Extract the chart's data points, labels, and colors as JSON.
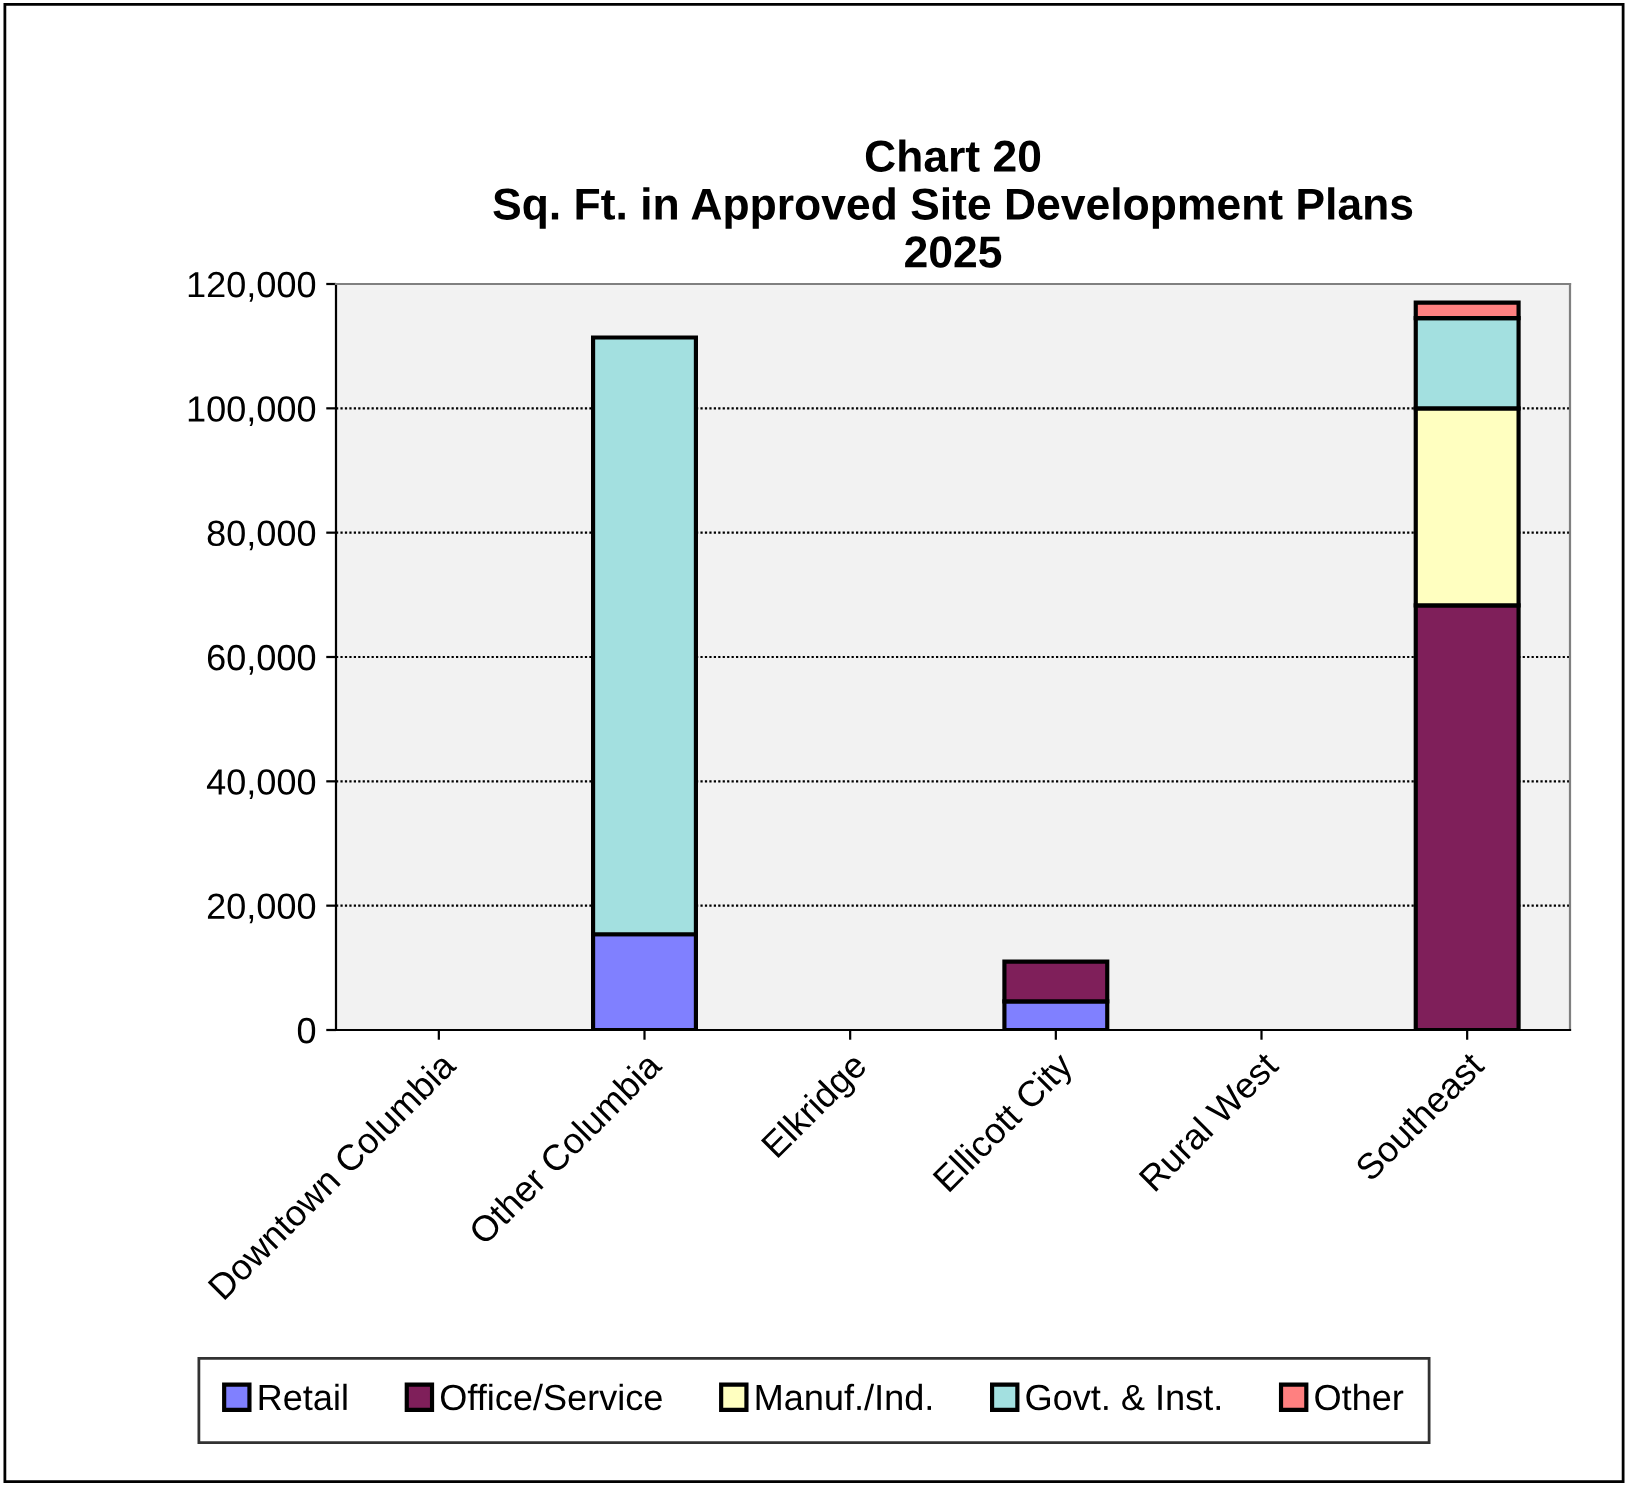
{
  "chart_data": {
    "type": "bar",
    "title": "Chart 20\nSq. Ft. in Approved Site Development Plans\n2025",
    "categories": [
      "Downtown Columbia",
      "Other Columbia",
      "Elkridge",
      "Ellicott City",
      "Rural West",
      "Southeast"
    ],
    "stacked": true,
    "series": [
      {
        "name": "Retail",
        "color": "#8080ff",
        "values": [
          null,
          15400,
          null,
          4600,
          null,
          null
        ]
      },
      {
        "name": "Office/Service",
        "color": "#7f1f5a",
        "values": [
          null,
          null,
          null,
          6400,
          null,
          68300
        ]
      },
      {
        "name": "Manuf./Ind.",
        "color": "#ffffc0",
        "values": [
          null,
          null,
          null,
          null,
          null,
          31700
        ]
      },
      {
        "name": "Govt. & Inst.",
        "color": "#a3e0e0",
        "values": [
          null,
          96000,
          null,
          null,
          null,
          14500
        ]
      },
      {
        "name": "Other",
        "color": "#ff8080",
        "values": [
          null,
          null,
          null,
          null,
          null,
          2500
        ]
      }
    ],
    "ylim": [
      0,
      120000
    ],
    "yticks": [
      {
        "value": 0,
        "label": "0"
      },
      {
        "value": 20000,
        "label": "20,000"
      },
      {
        "value": 40000,
        "label": "40,000"
      },
      {
        "value": 60000,
        "label": "60,000"
      },
      {
        "value": 80000,
        "label": "80,000"
      },
      {
        "value": 100000,
        "label": "100,000"
      },
      {
        "value": 120000,
        "label": "120,000"
      }
    ],
    "grid": "y",
    "legend": "bottom"
  }
}
